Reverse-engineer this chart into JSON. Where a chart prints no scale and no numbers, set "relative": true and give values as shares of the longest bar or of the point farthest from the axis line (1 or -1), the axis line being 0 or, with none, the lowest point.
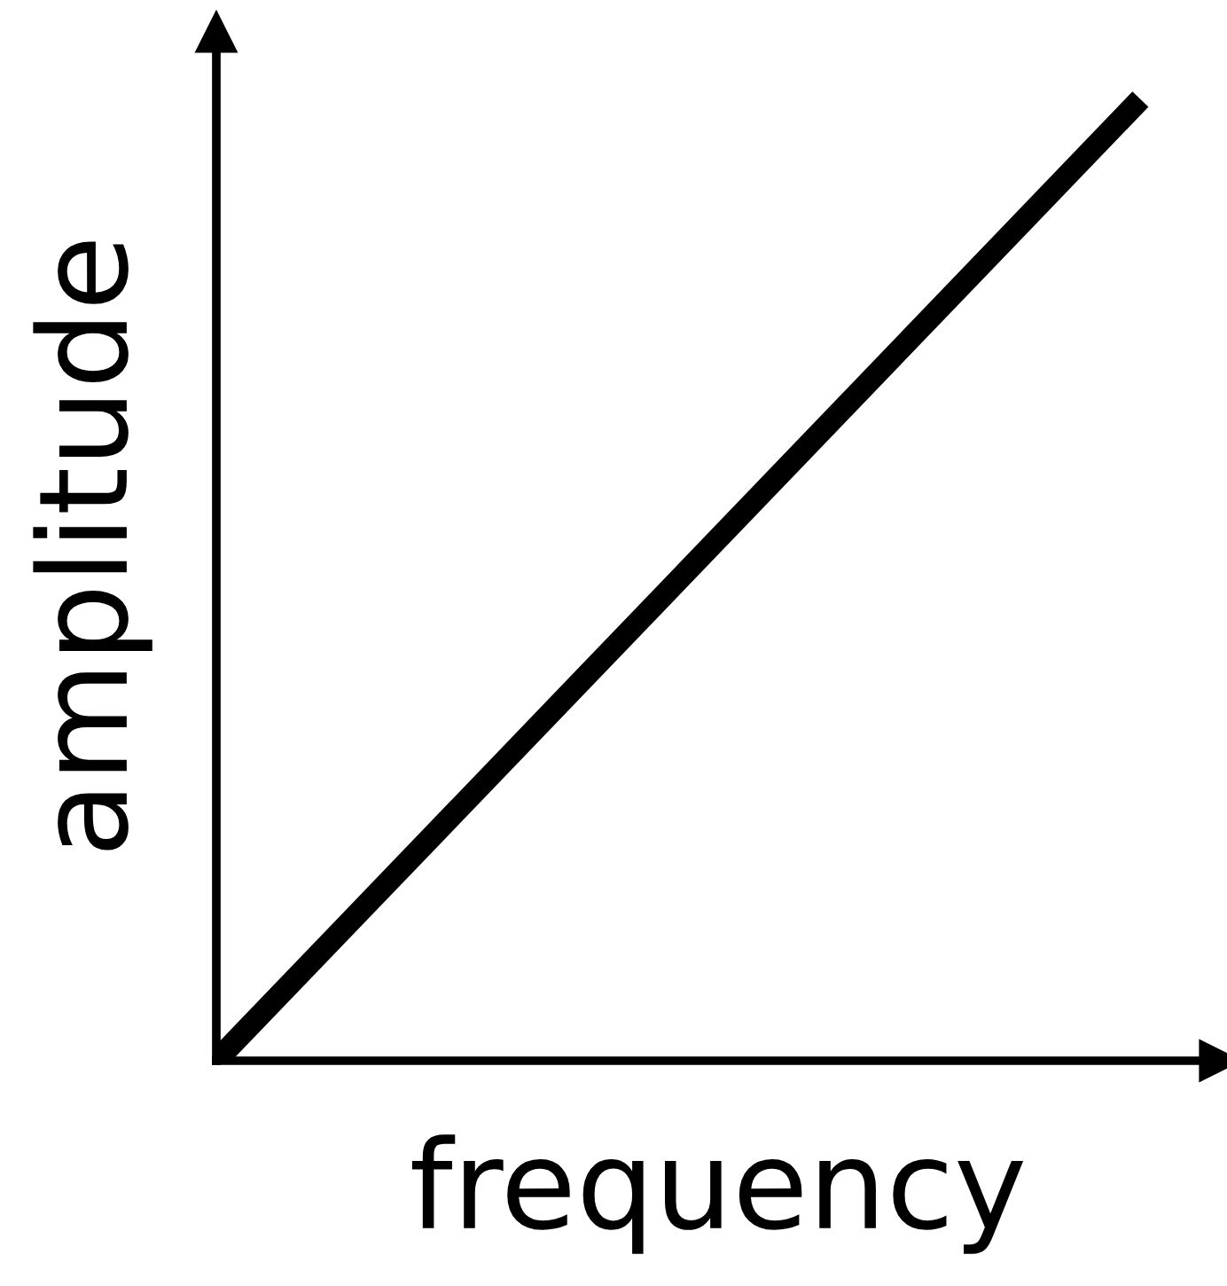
{
  "chart_data": {
    "type": "line",
    "relative": true,
    "xlabel": "frequency",
    "ylabel": "amplitude",
    "categories": [
      null,
      null
    ],
    "series": [
      {
        "color": "#000000",
        "values": [
          0,
          1
        ]
      }
    ],
    "marker": "none",
    "line_style": "solid"
  }
}
